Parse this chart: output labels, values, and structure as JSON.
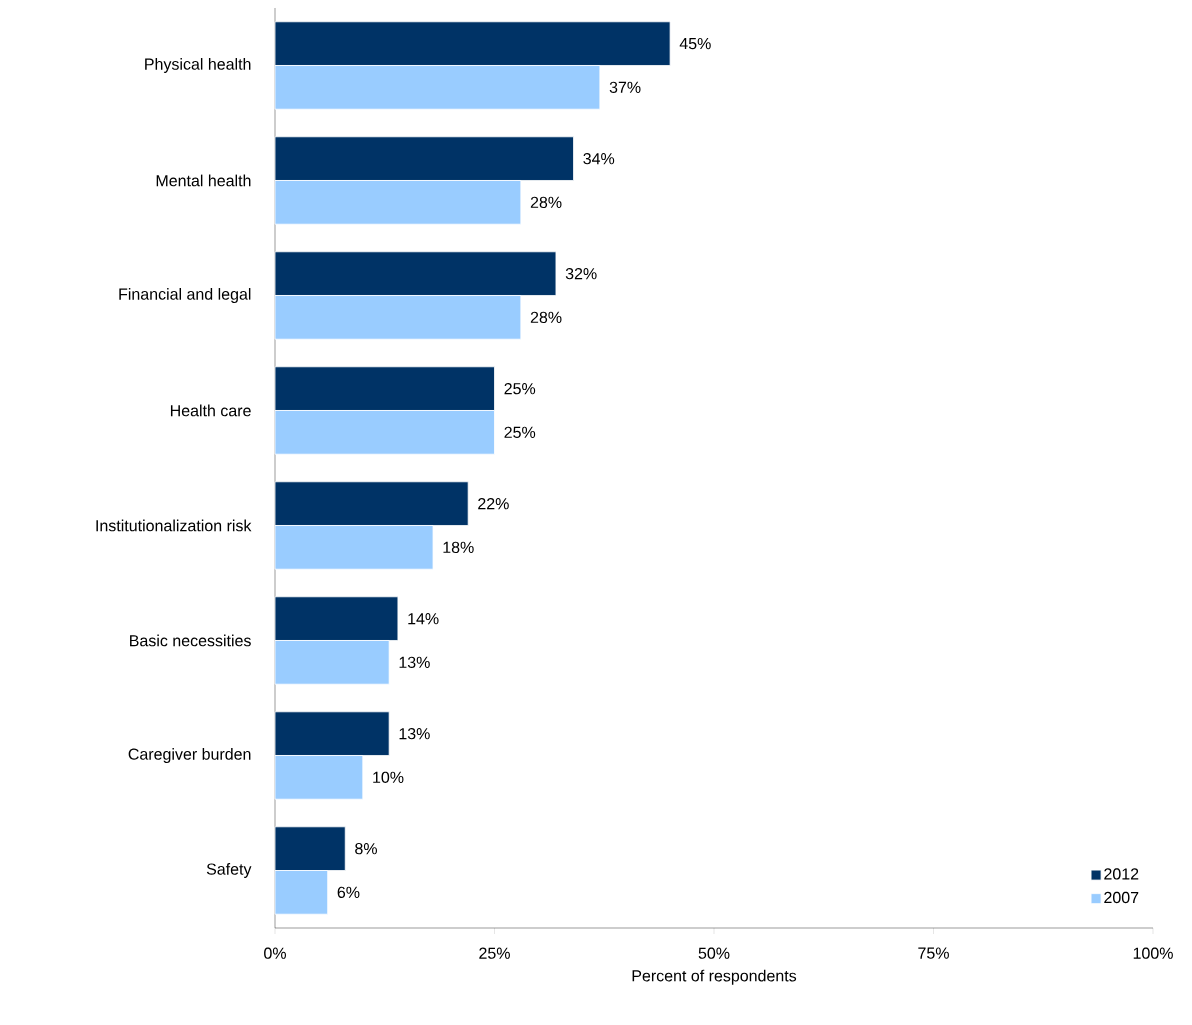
{
  "chart_data": {
    "type": "bar",
    "orientation": "horizontal",
    "xlabel": "Percent of respondents",
    "categories": [
      "Physical health",
      "Mental health",
      "Financial and legal",
      "Health care",
      "Institutionalization risk",
      "Basic necessities",
      "Caregiver burden",
      "Safety"
    ],
    "series": [
      {
        "name": "2012",
        "color": "#003366",
        "values": [
          45,
          34,
          32,
          25,
          22,
          14,
          13,
          8
        ],
        "value_labels": [
          "45%",
          "34%",
          "32%",
          "25%",
          "22%",
          "14%",
          "13%",
          "8%"
        ]
      },
      {
        "name": "2007",
        "color": "#99ccff",
        "values": [
          37,
          28,
          28,
          25,
          18,
          13,
          10,
          6
        ],
        "value_labels": [
          "37%",
          "28%",
          "28%",
          "25%",
          "18%",
          "13%",
          "10%",
          "6%"
        ]
      }
    ],
    "xlim": [
      0,
      100
    ],
    "xticks": [
      {
        "value": 0,
        "label": "0%"
      },
      {
        "value": 25,
        "label": "25%"
      },
      {
        "value": 50,
        "label": "50%"
      },
      {
        "value": 75,
        "label": "75%"
      },
      {
        "value": 100,
        "label": "100%"
      }
    ],
    "legend": "bottom right"
  }
}
